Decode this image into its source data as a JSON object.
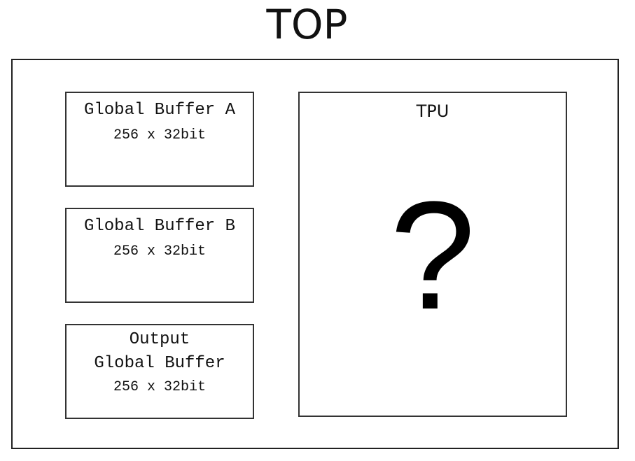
{
  "title": "TOP",
  "buffers": [
    {
      "name": "Global Buffer A",
      "size": "256 x 32bit"
    },
    {
      "name": "Global Buffer B",
      "size": "256 x 32bit"
    },
    {
      "name_line1": "Output",
      "name_line2": "Global Buffer",
      "size": "256 x 32bit"
    }
  ],
  "tpu": {
    "label": "TPU",
    "content": "?"
  }
}
